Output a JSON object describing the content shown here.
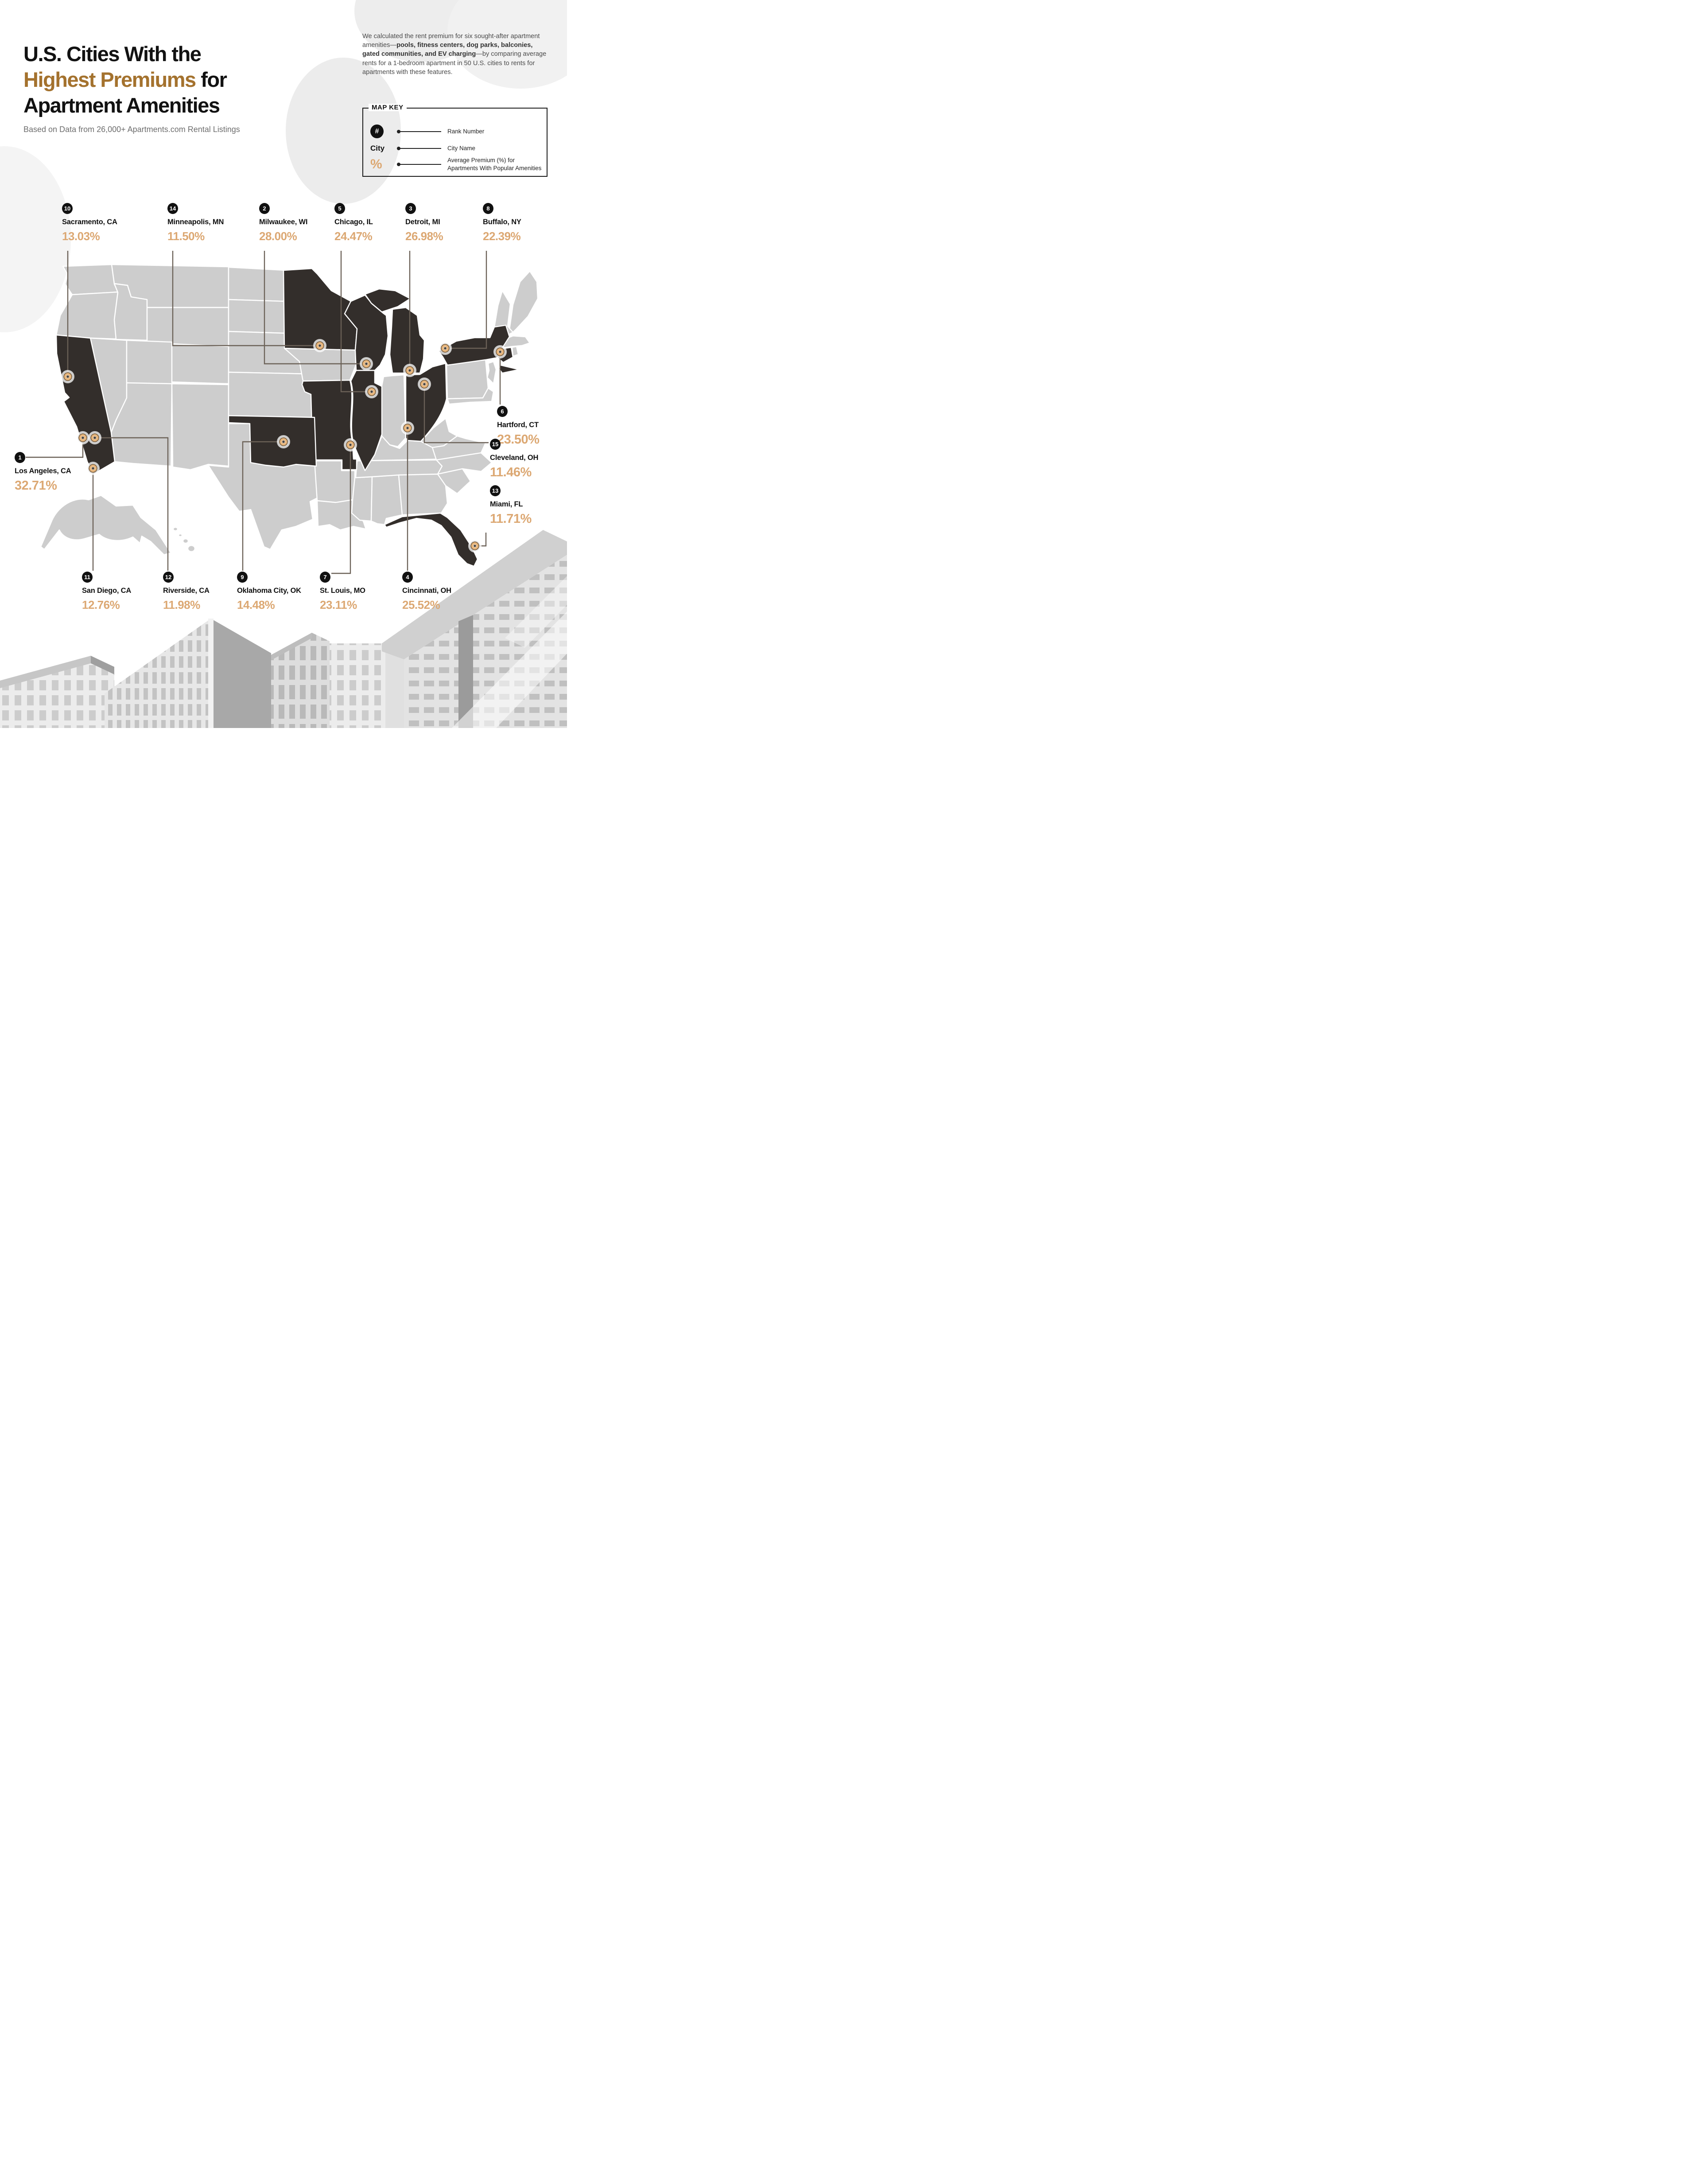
{
  "header": {
    "title_line1": "U.S. Cities With the",
    "title_highlight": "Highest Premiums",
    "title_after_highlight": " for",
    "title_line3": "Apartment Amenities",
    "subtitle": "Based on Data from 26,000+ Apartments.com Rental Listings"
  },
  "description": {
    "lead": "We calculated the rent premium for six sought-after apartment amenities—",
    "bold": "pools, fitness centers, dog parks, balconies, gated communities, and EV charging",
    "tail": "—by comparing average rents for a 1-bedroom apartment in 50 U.S. cities to rents for apartments with these features."
  },
  "map_key": {
    "title": "MAP KEY",
    "rows": [
      {
        "symbol": "#",
        "label": "Rank Number"
      },
      {
        "symbol": "City",
        "label": "City Name"
      },
      {
        "symbol": "%",
        "label": "Average Premium (%) for Apartments With Popular Amenities"
      }
    ]
  },
  "colors": {
    "accent_brown": "#a4722e",
    "accent_tan": "#dca873",
    "map_dark_state": "#332e2b",
    "map_light_state": "#cdcdcd",
    "connector": "#6b6157",
    "badge": "#111111"
  },
  "chart_data": {
    "type": "map",
    "title": "U.S. Cities With the Highest Premiums for Apartment Amenities",
    "subtitle": "Based on Data from 26,000+ Apartments.com Rental Listings",
    "value_label": "Average Premium (%) for Apartments With Popular Amenities",
    "legend_position": "top-right",
    "highlighted_states": [
      "CA",
      "MN",
      "WI",
      "MI",
      "IL",
      "MO",
      "OK",
      "OH",
      "NY",
      "CT",
      "FL"
    ],
    "cities": [
      {
        "rank": 1,
        "city": "Los Angeles, CA",
        "state": "CA",
        "premium_pct": 32.71,
        "premium_label": "32.71%"
      },
      {
        "rank": 2,
        "city": "Milwaukee, WI",
        "state": "WI",
        "premium_pct": 28.0,
        "premium_label": "28.00%"
      },
      {
        "rank": 3,
        "city": "Detroit, MI",
        "state": "MI",
        "premium_pct": 26.98,
        "premium_label": "26.98%"
      },
      {
        "rank": 4,
        "city": "Cincinnati, OH",
        "state": "OH",
        "premium_pct": 25.52,
        "premium_label": "25.52%"
      },
      {
        "rank": 5,
        "city": "Chicago, IL",
        "state": "IL",
        "premium_pct": 24.47,
        "premium_label": "24.47%"
      },
      {
        "rank": 6,
        "city": "Hartford, CT",
        "state": "CT",
        "premium_pct": 23.5,
        "premium_label": "23.50%"
      },
      {
        "rank": 7,
        "city": "St. Louis, MO",
        "state": "MO",
        "premium_pct": 23.11,
        "premium_label": "23.11%"
      },
      {
        "rank": 8,
        "city": "Buffalo, NY",
        "state": "NY",
        "premium_pct": 22.39,
        "premium_label": "22.39%"
      },
      {
        "rank": 9,
        "city": "Oklahoma City, OK",
        "state": "OK",
        "premium_pct": 14.48,
        "premium_label": "14.48%"
      },
      {
        "rank": 10,
        "city": "Sacramento, CA",
        "state": "CA",
        "premium_pct": 13.03,
        "premium_label": "13.03%"
      },
      {
        "rank": 11,
        "city": "San Diego, CA",
        "state": "CA",
        "premium_pct": 12.76,
        "premium_label": "12.76%"
      },
      {
        "rank": 12,
        "city": "Riverside, CA",
        "state": "CA",
        "premium_pct": 11.98,
        "premium_label": "11.98%"
      },
      {
        "rank": 13,
        "city": "Miami, FL",
        "state": "FL",
        "premium_pct": 11.71,
        "premium_label": "11.71%"
      },
      {
        "rank": 14,
        "city": "Minneapolis, MN",
        "state": "MN",
        "premium_pct": 11.5,
        "premium_label": "11.50%"
      },
      {
        "rank": 15,
        "city": "Cleveland, OH",
        "state": "OH",
        "premium_pct": 11.46,
        "premium_label": "11.46%"
      }
    ]
  }
}
